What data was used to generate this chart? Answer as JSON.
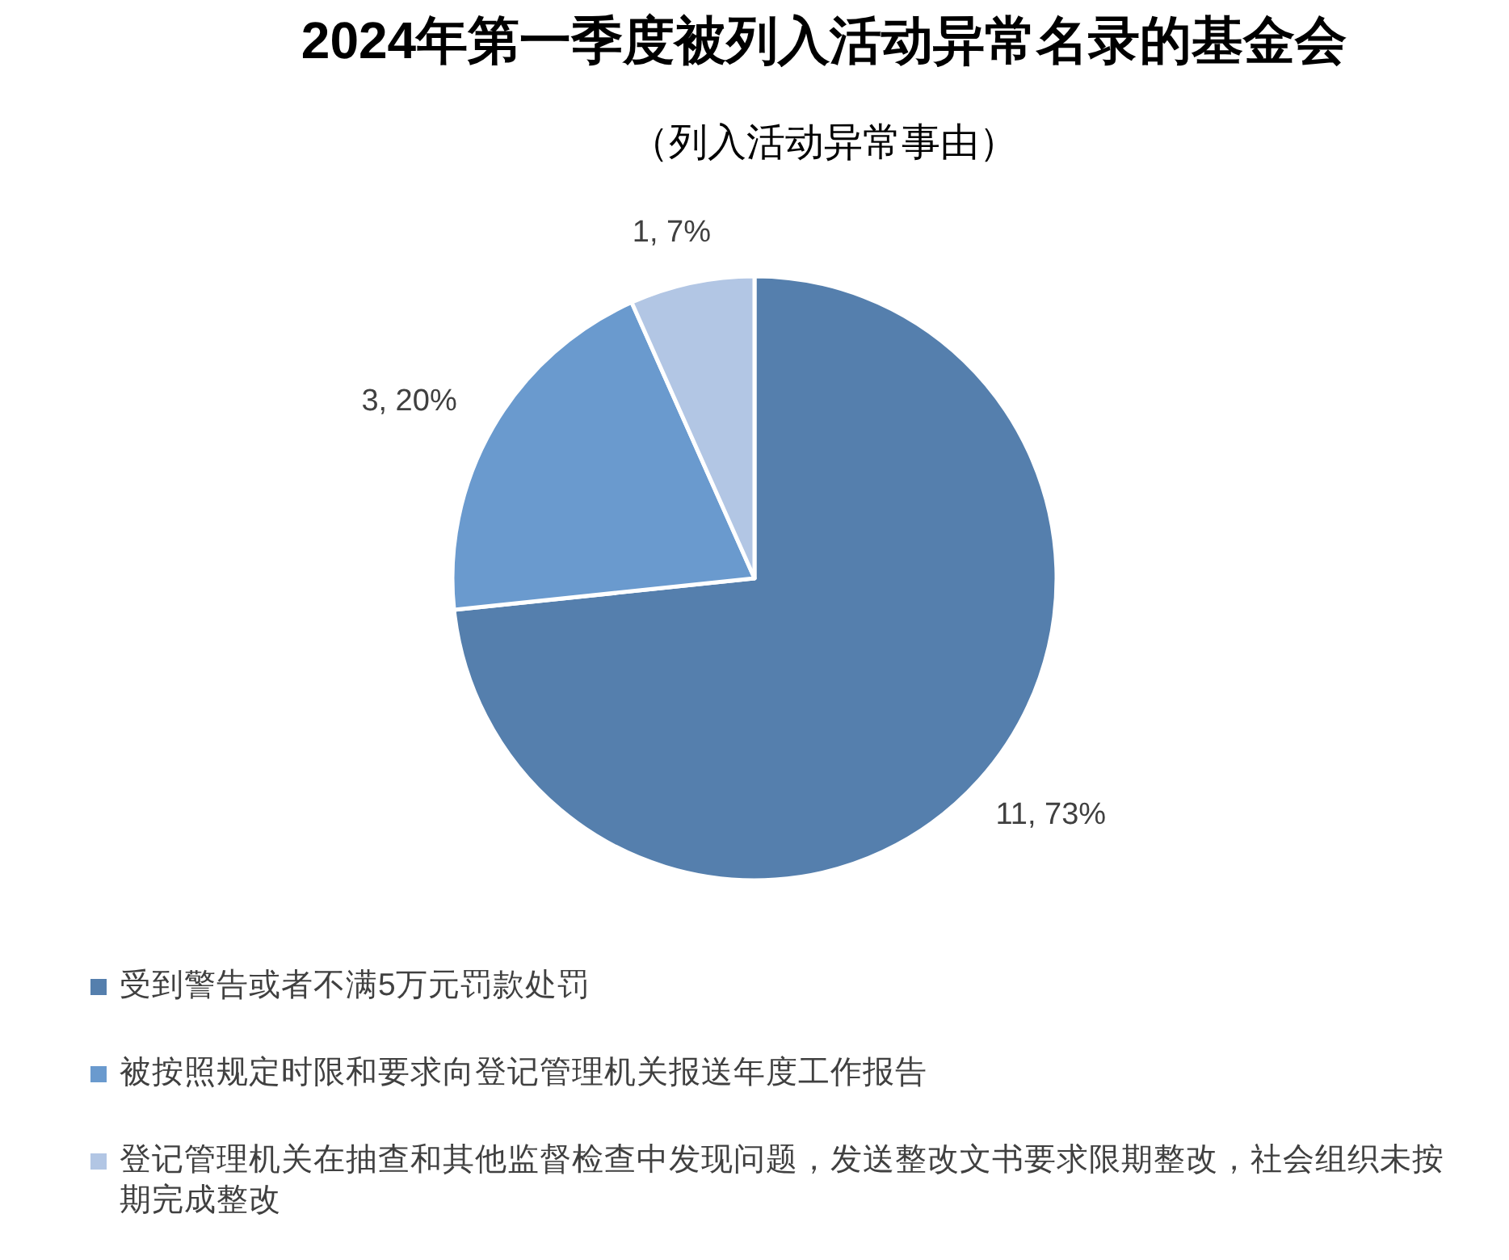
{
  "chart_data": {
    "type": "pie",
    "title": "2024年第一季度被列入活动异常名录的基金会",
    "subtitle": "（列入活动异常事由）",
    "categories": [
      "受到警告或者不满5万元罚款处罚",
      "被按照规定时限和要求向登记管理机关报送年度工作报告",
      "登记管理机关在抽查和其他监督检查中发现问题，发送整改文书要求限期整改，社会组织未按期完成整改"
    ],
    "values": [
      11,
      3,
      1
    ],
    "colors": [
      "#557fad",
      "#6a9ace",
      "#b2c6e4"
    ],
    "value_labels": [
      "11, 73%",
      "3, 20%",
      "1, 7%"
    ],
    "legend": "bottom"
  }
}
